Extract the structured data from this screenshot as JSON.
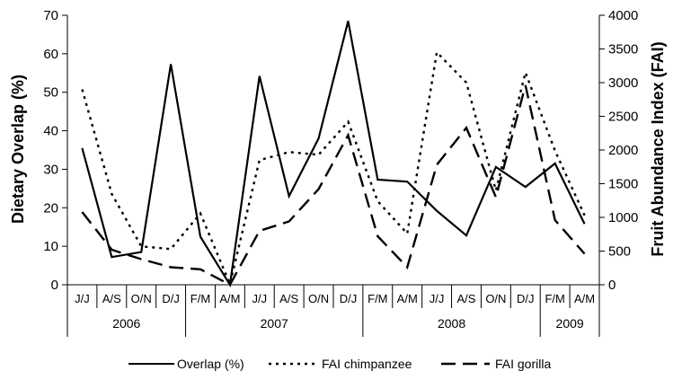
{
  "chart_data": {
    "type": "line",
    "title": "",
    "categories": [
      "J/J",
      "A/S",
      "O/N",
      "D/J",
      "F/M",
      "A/M",
      "J/J",
      "A/S",
      "O/N",
      "D/J",
      "F/M",
      "A/M",
      "J/J",
      "A/S",
      "O/N",
      "D/J",
      "F/M",
      "A/M"
    ],
    "years": [
      {
        "label": "2006",
        "span": 4
      },
      {
        "label": "2007",
        "span": 6
      },
      {
        "label": "2008",
        "span": 6
      },
      {
        "label": "2009",
        "span": 2
      }
    ],
    "y_left": {
      "label": "Dietary Overlap (%)",
      "range": [
        0,
        70
      ],
      "ticks": [
        0,
        10,
        20,
        30,
        40,
        50,
        60,
        70
      ]
    },
    "y_right": {
      "label": "Fruit Abundance Index (FAI)",
      "range": [
        0,
        4000
      ],
      "ticks": [
        0,
        500,
        1000,
        1500,
        2000,
        2500,
        3000,
        3500,
        4000
      ]
    },
    "series": [
      {
        "name": "Overlap (%)",
        "axis": "left",
        "style": "solid",
        "values": [
          35.5,
          7.2,
          8.5,
          57.3,
          12.5,
          0,
          54.2,
          23.0,
          38.0,
          68.5,
          27.3,
          26.8,
          19.2,
          12.8,
          30.6,
          25.4,
          31.5,
          15.8
        ]
      },
      {
        "name": "FAI chimpanzee",
        "axis": "right",
        "style": "dotted",
        "values": [
          2900,
          1350,
          570,
          530,
          1060,
          10,
          1850,
          1970,
          1930,
          2420,
          1240,
          760,
          3450,
          3000,
          1400,
          3150,
          1990,
          1030
        ]
      },
      {
        "name": "FAI gorilla",
        "axis": "right",
        "style": "dashed",
        "values": [
          1080,
          520,
          380,
          260,
          230,
          0,
          800,
          940,
          1420,
          2220,
          720,
          260,
          1780,
          2330,
          1300,
          2960,
          960,
          460
        ]
      }
    ],
    "legend_position": "bottom",
    "grid": false
  }
}
